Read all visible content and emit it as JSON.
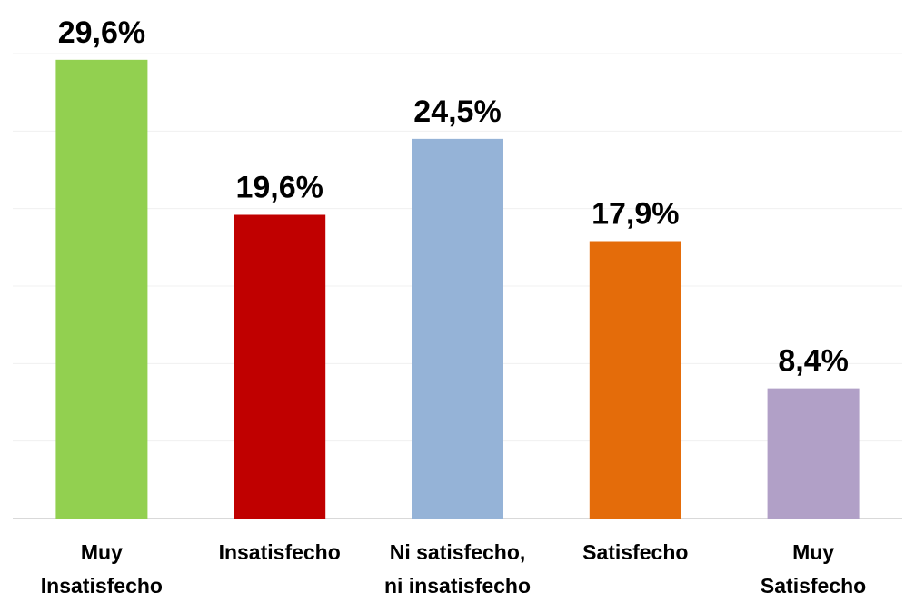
{
  "chart_data": {
    "type": "bar",
    "title": "",
    "xlabel": "",
    "ylabel": "",
    "ylim": [
      0,
      30
    ],
    "grid": true,
    "categories": [
      [
        "Muy",
        "Insatisfecho"
      ],
      [
        "Insatisfecho"
      ],
      [
        "Ni satisfecho,",
        "ni insatisfecho"
      ],
      [
        "Satisfecho"
      ],
      [
        "Muy",
        "Satisfecho"
      ]
    ],
    "values": [
      29.6,
      19.6,
      24.5,
      17.9,
      8.4
    ],
    "value_labels": [
      "29,6%",
      "19,6%",
      "24,5%",
      "17,9%",
      "8,4%"
    ],
    "colors": [
      "#92d050",
      "#c00000",
      "#95b3d7",
      "#e46c0a",
      "#b1a0c7"
    ]
  }
}
